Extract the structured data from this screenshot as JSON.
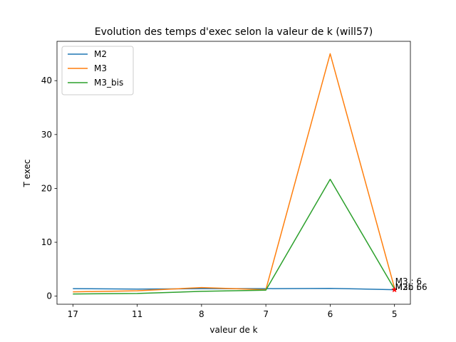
{
  "chart_data": {
    "type": "line",
    "title": "Evolution des temps d'exec selon la valeur de k (will57)",
    "xlabel": "valeur de k",
    "ylabel": "T exec",
    "categories": [
      "17",
      "11",
      "8",
      "7",
      "6",
      "5"
    ],
    "ylim": [
      -1.5,
      47.3
    ],
    "yticks": [
      0,
      10,
      20,
      30,
      40
    ],
    "grid": false,
    "legend_position": "top-left",
    "series": [
      {
        "name": "M2",
        "color": "#1f77b4",
        "values": [
          1.4,
          1.3,
          1.4,
          1.4,
          1.45,
          1.2
        ]
      },
      {
        "name": "M3",
        "color": "#ff7f0e",
        "values": [
          0.8,
          1.0,
          1.6,
          1.2,
          45.0,
          1.5
        ]
      },
      {
        "name": "M3_bis",
        "color": "#2ca02c",
        "values": [
          0.4,
          0.5,
          0.9,
          1.1,
          21.7,
          1.3
        ]
      }
    ],
    "markers": [
      {
        "category": "5",
        "value": 1.2,
        "color": "#ff0000"
      }
    ],
    "annotations": [
      {
        "text": "M3 : 6",
        "category": "5",
        "value": 2.7
      },
      {
        "text": "M3b : 6",
        "category": "5",
        "value": 1.7
      },
      {
        "text": "M2 : 6",
        "category": "5",
        "value": 1.7
      }
    ]
  }
}
